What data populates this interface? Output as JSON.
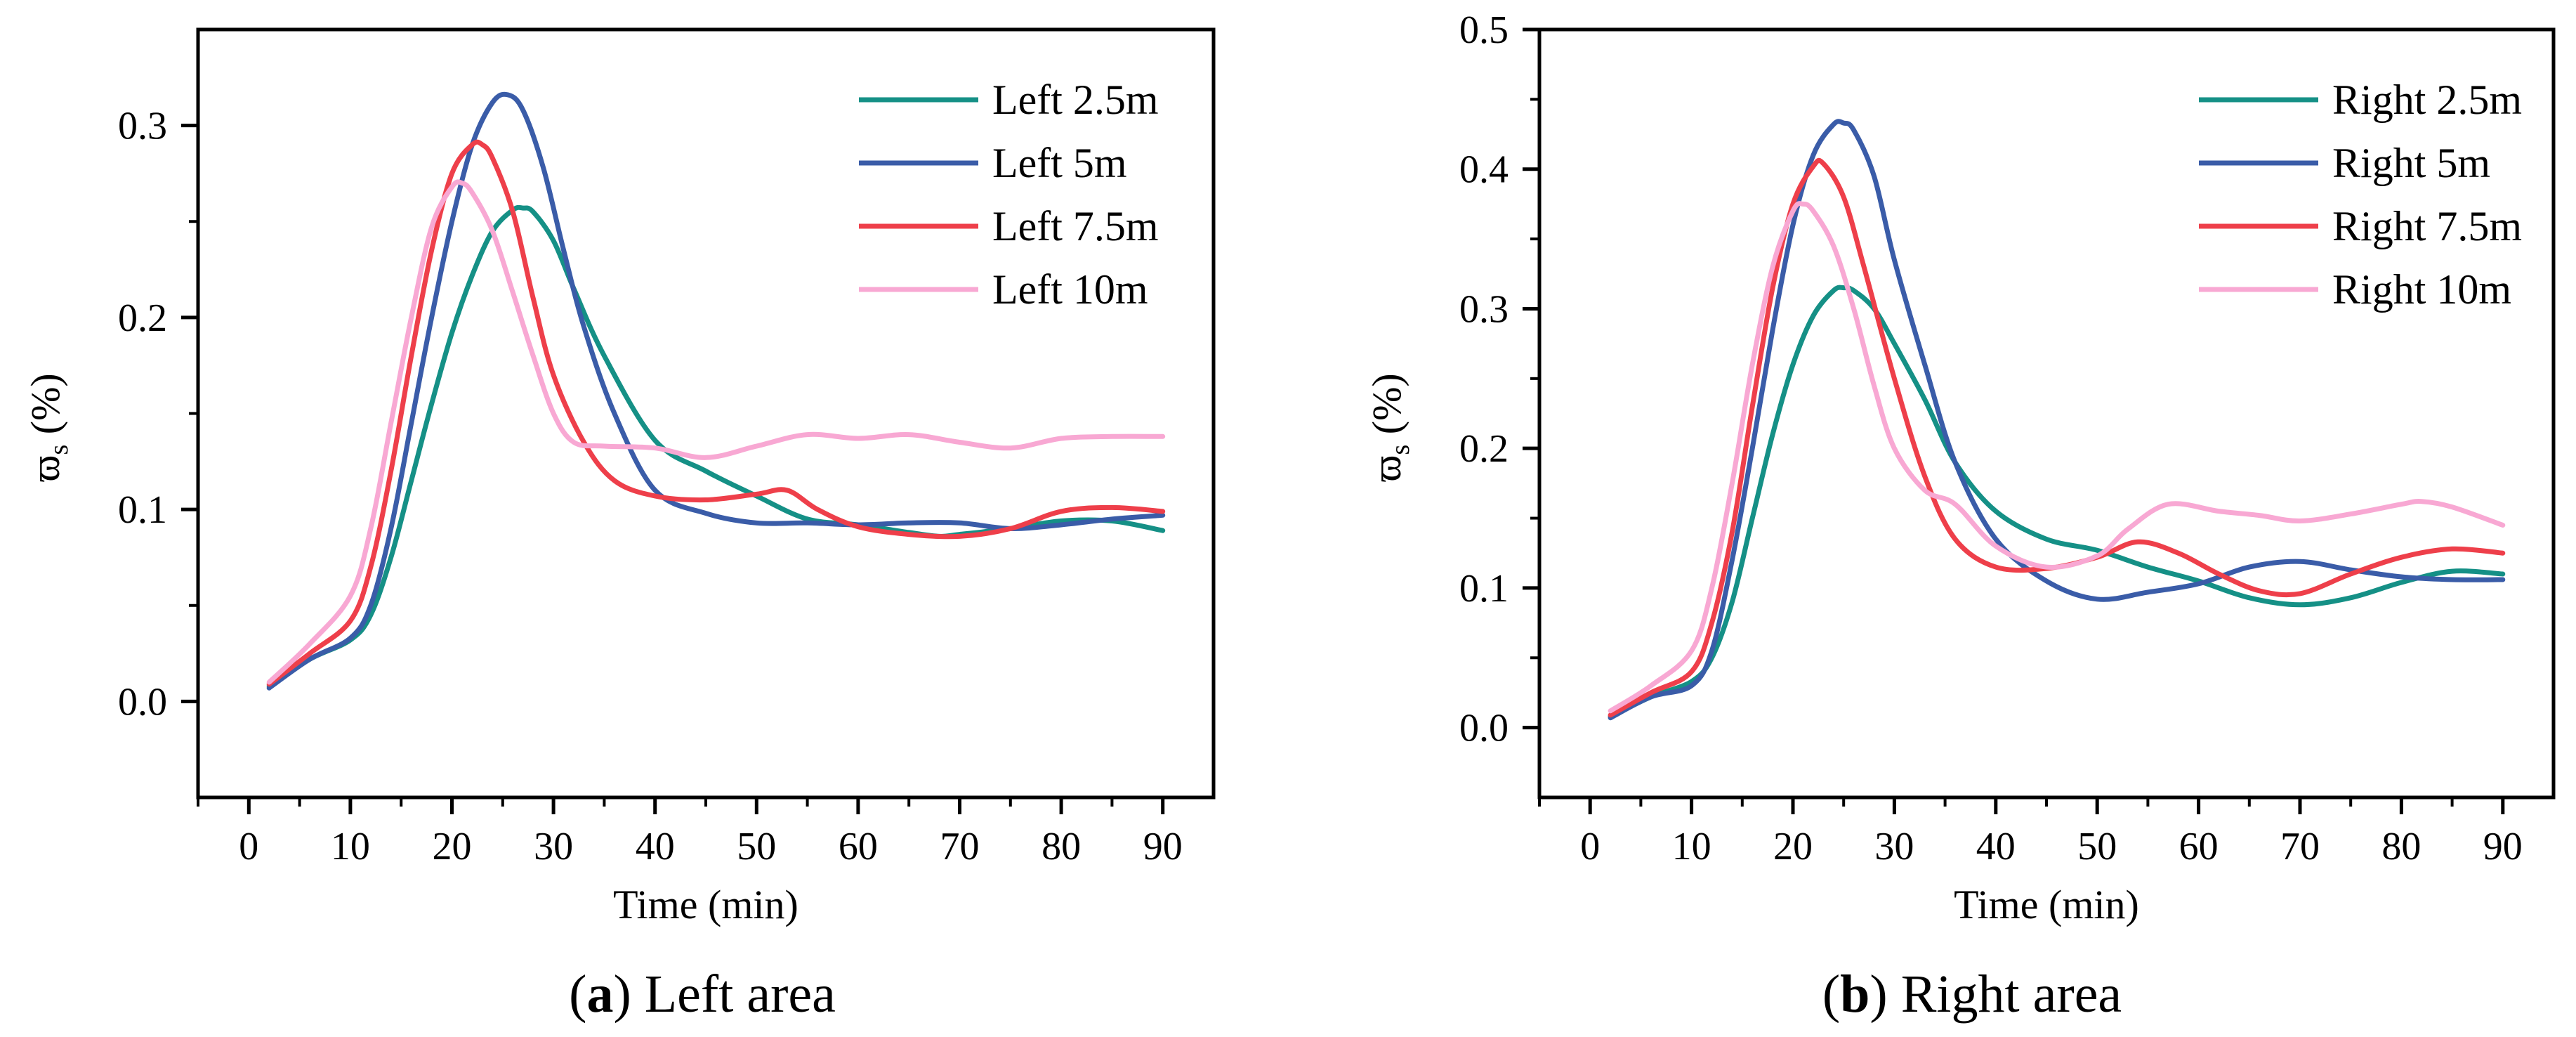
{
  "chart_data": [
    {
      "id": "left",
      "type": "line",
      "caption_letter": "a",
      "caption_text": "Left area",
      "xlabel": "Time (min)",
      "ylabel_symbol": "ϖ",
      "ylabel_sub": "s",
      "ylabel_unit": "(%)",
      "xlim": [
        -5,
        95
      ],
      "ylim": [
        -0.05,
        0.35
      ],
      "xticks": [
        0,
        10,
        20,
        30,
        40,
        50,
        60,
        70,
        80,
        90
      ],
      "yticks": [
        0.0,
        0.1,
        0.2,
        0.3
      ],
      "ytick_labels": [
        "0.0",
        "0.1",
        "0.2",
        "0.3"
      ],
      "legend_position": "top-right",
      "series": [
        {
          "name": "Left 2.5m",
          "color": "#159086",
          "x": [
            2,
            6,
            10,
            12,
            14,
            16,
            18,
            20,
            22,
            24,
            26,
            27,
            28,
            30,
            32,
            35,
            40,
            45,
            50,
            55,
            60,
            65,
            68,
            70,
            75,
            80,
            85,
            90
          ],
          "y": [
            0.008,
            0.022,
            0.032,
            0.045,
            0.075,
            0.115,
            0.155,
            0.192,
            0.222,
            0.245,
            0.256,
            0.257,
            0.255,
            0.24,
            0.215,
            0.18,
            0.136,
            0.12,
            0.107,
            0.095,
            0.092,
            0.088,
            0.086,
            0.087,
            0.09,
            0.094,
            0.094,
            0.089
          ]
        },
        {
          "name": "Left 5m",
          "color": "#3a5ca8",
          "x": [
            2,
            6,
            10,
            12,
            14,
            16,
            18,
            20,
            22,
            24,
            25.5,
            27,
            29,
            31,
            33,
            36,
            40,
            45,
            50,
            55,
            60,
            65,
            70,
            75,
            80,
            85,
            90
          ],
          "y": [
            0.007,
            0.022,
            0.033,
            0.05,
            0.09,
            0.145,
            0.2,
            0.25,
            0.29,
            0.312,
            0.316,
            0.308,
            0.278,
            0.235,
            0.195,
            0.15,
            0.11,
            0.098,
            0.093,
            0.093,
            0.092,
            0.093,
            0.093,
            0.09,
            0.092,
            0.095,
            0.097
          ]
        },
        {
          "name": "Left 7.5m",
          "color": "#ee3f4a",
          "x": [
            2,
            6,
            10,
            12,
            14,
            16,
            18,
            20,
            22,
            23,
            24,
            26,
            28,
            30,
            33,
            36,
            40,
            45,
            50,
            53,
            56,
            60,
            65,
            70,
            75,
            80,
            85,
            90
          ],
          "y": [
            0.009,
            0.025,
            0.042,
            0.07,
            0.12,
            0.18,
            0.235,
            0.275,
            0.29,
            0.29,
            0.283,
            0.255,
            0.21,
            0.17,
            0.135,
            0.115,
            0.107,
            0.105,
            0.108,
            0.11,
            0.1,
            0.091,
            0.087,
            0.086,
            0.09,
            0.099,
            0.101,
            0.099
          ]
        },
        {
          "name": "Left 10m",
          "color": "#f8a8d3",
          "x": [
            2,
            6,
            10,
            12,
            14,
            16,
            18,
            20,
            21,
            22,
            24,
            26,
            28,
            30,
            32,
            35,
            40,
            45,
            50,
            55,
            60,
            65,
            70,
            75,
            80,
            85,
            90
          ],
          "y": [
            0.01,
            0.03,
            0.055,
            0.09,
            0.145,
            0.2,
            0.247,
            0.268,
            0.27,
            0.265,
            0.245,
            0.213,
            0.18,
            0.15,
            0.135,
            0.133,
            0.132,
            0.127,
            0.133,
            0.139,
            0.137,
            0.139,
            0.135,
            0.132,
            0.137,
            0.138,
            0.138
          ]
        }
      ]
    },
    {
      "id": "right",
      "type": "line",
      "caption_letter": "b",
      "caption_text": "Right area",
      "xlabel": "Time (min)",
      "ylabel_symbol": "ϖ",
      "ylabel_sub": "s",
      "ylabel_unit": "(%)",
      "xlim": [
        -5,
        95
      ],
      "ylim": [
        -0.05,
        0.5
      ],
      "xticks": [
        0,
        10,
        20,
        30,
        40,
        50,
        60,
        70,
        80,
        90
      ],
      "yticks": [
        0.0,
        0.1,
        0.2,
        0.3,
        0.4,
        0.5
      ],
      "ytick_labels": [
        "0.0",
        "0.1",
        "0.2",
        "0.3",
        "0.4",
        "0.5"
      ],
      "legend_position": "top-right",
      "series": [
        {
          "name": "Right 2.5m",
          "color": "#159086",
          "x": [
            2,
            6,
            10,
            12,
            14,
            16,
            18,
            20,
            22,
            24,
            25,
            26,
            28,
            30,
            33,
            36,
            40,
            45,
            50,
            55,
            60,
            65,
            70,
            75,
            80,
            85,
            90
          ],
          "y": [
            0.008,
            0.022,
            0.033,
            0.05,
            0.09,
            0.15,
            0.21,
            0.26,
            0.295,
            0.313,
            0.315,
            0.313,
            0.3,
            0.275,
            0.235,
            0.19,
            0.155,
            0.135,
            0.127,
            0.115,
            0.105,
            0.093,
            0.088,
            0.093,
            0.104,
            0.112,
            0.11
          ]
        },
        {
          "name": "Right 5m",
          "color": "#3a5ca8",
          "x": [
            2,
            6,
            10,
            12,
            14,
            16,
            18,
            20,
            22,
            24,
            25,
            26,
            28,
            30,
            33,
            36,
            40,
            45,
            50,
            55,
            60,
            65,
            70,
            75,
            80,
            85,
            90
          ],
          "y": [
            0.007,
            0.022,
            0.03,
            0.055,
            0.12,
            0.2,
            0.285,
            0.36,
            0.41,
            0.432,
            0.433,
            0.428,
            0.395,
            0.335,
            0.26,
            0.19,
            0.135,
            0.105,
            0.092,
            0.097,
            0.103,
            0.115,
            0.119,
            0.113,
            0.108,
            0.106,
            0.106
          ]
        },
        {
          "name": "Right 7.5m",
          "color": "#ee3f4a",
          "x": [
            2,
            6,
            10,
            12,
            14,
            16,
            18,
            20,
            22,
            23,
            25,
            27,
            30,
            33,
            36,
            40,
            45,
            50,
            54,
            58,
            62,
            66,
            70,
            75,
            80,
            85,
            90
          ],
          "y": [
            0.009,
            0.025,
            0.04,
            0.075,
            0.14,
            0.23,
            0.315,
            0.375,
            0.402,
            0.404,
            0.38,
            0.33,
            0.25,
            0.18,
            0.135,
            0.115,
            0.114,
            0.122,
            0.133,
            0.125,
            0.11,
            0.098,
            0.096,
            0.11,
            0.122,
            0.128,
            0.125
          ]
        },
        {
          "name": "Right 10m",
          "color": "#f8a8d3",
          "x": [
            2,
            6,
            10,
            12,
            14,
            16,
            18,
            20,
            21,
            22,
            24,
            26,
            28,
            30,
            33,
            36,
            40,
            45,
            50,
            53,
            57,
            62,
            66,
            70,
            75,
            80,
            82,
            85,
            90
          ],
          "y": [
            0.012,
            0.03,
            0.055,
            0.1,
            0.175,
            0.26,
            0.33,
            0.37,
            0.375,
            0.37,
            0.345,
            0.3,
            0.245,
            0.2,
            0.17,
            0.16,
            0.13,
            0.115,
            0.123,
            0.142,
            0.16,
            0.155,
            0.152,
            0.148,
            0.153,
            0.16,
            0.162,
            0.158,
            0.145
          ]
        }
      ]
    }
  ]
}
